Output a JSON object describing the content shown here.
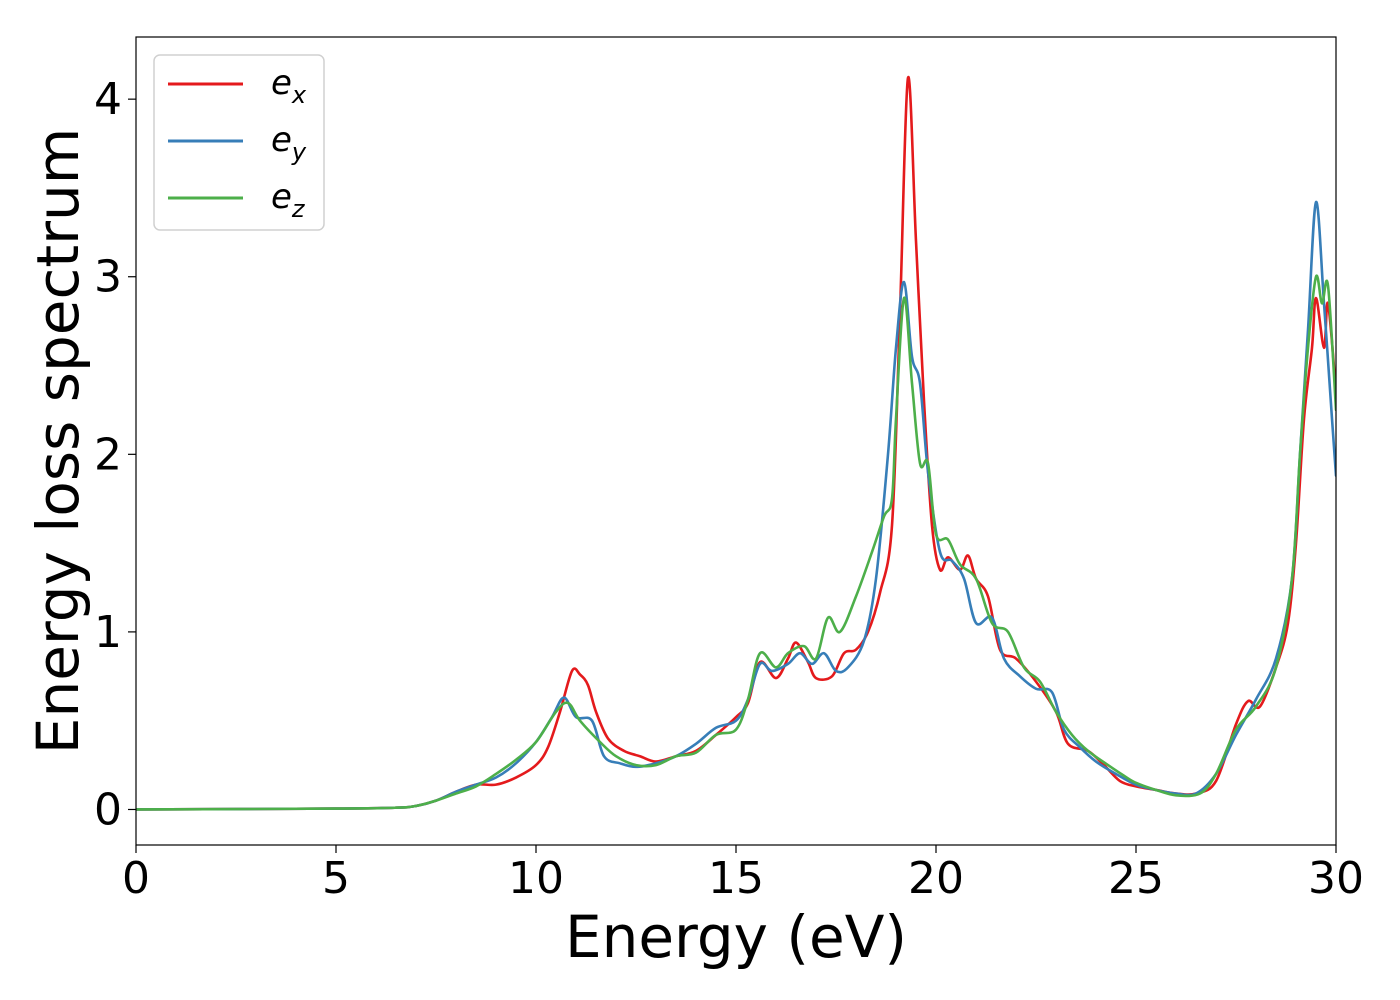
{
  "chart_data": {
    "type": "line",
    "title": "",
    "xlabel": "Energy (eV)",
    "ylabel": "Energy loss spectrum",
    "xlim": [
      0,
      30
    ],
    "ylim": [
      -0.2,
      4.35
    ],
    "xticks": [
      0,
      5,
      10,
      15,
      20,
      25,
      30
    ],
    "yticks": [
      0,
      1,
      2,
      3,
      4
    ],
    "xtick_labels": [
      "0",
      "5",
      "10",
      "15",
      "20",
      "25",
      "30"
    ],
    "ytick_labels": [
      "0",
      "1",
      "2",
      "3",
      "4"
    ],
    "grid": false,
    "legend_position": "top-left",
    "series": [
      {
        "name": "e_x",
        "label_base": "e",
        "label_sub": "x",
        "color": "#e41a1c",
        "points": [
          [
            0,
            0
          ],
          [
            5,
            0.005
          ],
          [
            6.5,
            0.01
          ],
          [
            7,
            0.02
          ],
          [
            7.5,
            0.05
          ],
          [
            8,
            0.1
          ],
          [
            8.5,
            0.14
          ],
          [
            9,
            0.14
          ],
          [
            9.5,
            0.18
          ],
          [
            10,
            0.25
          ],
          [
            10.3,
            0.35
          ],
          [
            10.6,
            0.55
          ],
          [
            10.9,
            0.78
          ],
          [
            11.1,
            0.76
          ],
          [
            11.3,
            0.7
          ],
          [
            11.5,
            0.55
          ],
          [
            11.8,
            0.4
          ],
          [
            12.2,
            0.33
          ],
          [
            12.6,
            0.3
          ],
          [
            13,
            0.27
          ],
          [
            13.5,
            0.3
          ],
          [
            14,
            0.33
          ],
          [
            14.5,
            0.42
          ],
          [
            15,
            0.52
          ],
          [
            15.3,
            0.6
          ],
          [
            15.6,
            0.83
          ],
          [
            16,
            0.74
          ],
          [
            16.3,
            0.85
          ],
          [
            16.5,
            0.94
          ],
          [
            16.8,
            0.83
          ],
          [
            17,
            0.74
          ],
          [
            17.4,
            0.75
          ],
          [
            17.7,
            0.88
          ],
          [
            18,
            0.9
          ],
          [
            18.3,
            1.0
          ],
          [
            18.6,
            1.22
          ],
          [
            18.9,
            1.6
          ],
          [
            19.1,
            2.8
          ],
          [
            19.3,
            4.12
          ],
          [
            19.5,
            3.2
          ],
          [
            19.7,
            2.3
          ],
          [
            19.9,
            1.6
          ],
          [
            20.1,
            1.35
          ],
          [
            20.3,
            1.42
          ],
          [
            20.6,
            1.35
          ],
          [
            20.8,
            1.43
          ],
          [
            21,
            1.3
          ],
          [
            21.3,
            1.2
          ],
          [
            21.6,
            0.9
          ],
          [
            22,
            0.85
          ],
          [
            22.5,
            0.72
          ],
          [
            23,
            0.55
          ],
          [
            23.3,
            0.37
          ],
          [
            23.8,
            0.33
          ],
          [
            24.2,
            0.25
          ],
          [
            24.6,
            0.16
          ],
          [
            25,
            0.13
          ],
          [
            25.5,
            0.11
          ],
          [
            26,
            0.09
          ],
          [
            26.5,
            0.09
          ],
          [
            27,
            0.16
          ],
          [
            27.5,
            0.48
          ],
          [
            27.8,
            0.61
          ],
          [
            28.1,
            0.58
          ],
          [
            28.5,
            0.8
          ],
          [
            28.8,
            1.05
          ],
          [
            29,
            1.5
          ],
          [
            29.2,
            2.2
          ],
          [
            29.4,
            2.6
          ],
          [
            29.5,
            2.88
          ],
          [
            29.7,
            2.6
          ],
          [
            29.8,
            2.85
          ],
          [
            30,
            2.35
          ]
        ]
      },
      {
        "name": "e_y",
        "label_base": "e",
        "label_sub": "y",
        "color": "#377eb8",
        "points": [
          [
            0,
            0
          ],
          [
            5,
            0.005
          ],
          [
            6.5,
            0.01
          ],
          [
            7,
            0.02
          ],
          [
            7.5,
            0.05
          ],
          [
            8,
            0.1
          ],
          [
            8.5,
            0.14
          ],
          [
            9,
            0.18
          ],
          [
            9.5,
            0.26
          ],
          [
            10,
            0.38
          ],
          [
            10.4,
            0.52
          ],
          [
            10.7,
            0.63
          ],
          [
            11,
            0.52
          ],
          [
            11.4,
            0.5
          ],
          [
            11.7,
            0.3
          ],
          [
            12.1,
            0.26
          ],
          [
            12.5,
            0.24
          ],
          [
            13,
            0.26
          ],
          [
            13.5,
            0.3
          ],
          [
            14,
            0.37
          ],
          [
            14.5,
            0.46
          ],
          [
            15,
            0.5
          ],
          [
            15.3,
            0.62
          ],
          [
            15.6,
            0.82
          ],
          [
            15.9,
            0.78
          ],
          [
            16.3,
            0.82
          ],
          [
            16.6,
            0.88
          ],
          [
            16.9,
            0.82
          ],
          [
            17.2,
            0.88
          ],
          [
            17.5,
            0.78
          ],
          [
            17.8,
            0.8
          ],
          [
            18.2,
            0.95
          ],
          [
            18.5,
            1.3
          ],
          [
            18.8,
            2.0
          ],
          [
            19.0,
            2.6
          ],
          [
            19.2,
            2.97
          ],
          [
            19.4,
            2.55
          ],
          [
            19.6,
            2.4
          ],
          [
            19.8,
            1.9
          ],
          [
            20.1,
            1.45
          ],
          [
            20.4,
            1.4
          ],
          [
            20.7,
            1.3
          ],
          [
            21,
            1.05
          ],
          [
            21.4,
            1.08
          ],
          [
            21.7,
            0.85
          ],
          [
            22.1,
            0.75
          ],
          [
            22.5,
            0.68
          ],
          [
            22.9,
            0.66
          ],
          [
            23.2,
            0.45
          ],
          [
            23.6,
            0.35
          ],
          [
            24,
            0.27
          ],
          [
            24.5,
            0.2
          ],
          [
            25,
            0.14
          ],
          [
            25.5,
            0.11
          ],
          [
            26,
            0.09
          ],
          [
            26.5,
            0.09
          ],
          [
            27,
            0.2
          ],
          [
            27.5,
            0.42
          ],
          [
            28,
            0.62
          ],
          [
            28.5,
            0.85
          ],
          [
            28.9,
            1.3
          ],
          [
            29.1,
            2.0
          ],
          [
            29.3,
            2.7
          ],
          [
            29.5,
            3.42
          ],
          [
            29.7,
            2.85
          ],
          [
            29.9,
            2.2
          ],
          [
            30,
            1.88
          ]
        ]
      },
      {
        "name": "e_z",
        "label_base": "e",
        "label_sub": "z",
        "color": "#4daf4a",
        "points": [
          [
            0,
            0
          ],
          [
            5,
            0.005
          ],
          [
            6.5,
            0.01
          ],
          [
            7,
            0.02
          ],
          [
            7.5,
            0.05
          ],
          [
            8,
            0.09
          ],
          [
            8.5,
            0.13
          ],
          [
            9,
            0.2
          ],
          [
            9.5,
            0.28
          ],
          [
            10,
            0.38
          ],
          [
            10.5,
            0.55
          ],
          [
            10.8,
            0.6
          ],
          [
            11.1,
            0.5
          ],
          [
            11.6,
            0.38
          ],
          [
            12,
            0.3
          ],
          [
            12.5,
            0.25
          ],
          [
            13,
            0.25
          ],
          [
            13.5,
            0.3
          ],
          [
            14,
            0.32
          ],
          [
            14.5,
            0.42
          ],
          [
            15,
            0.45
          ],
          [
            15.3,
            0.62
          ],
          [
            15.6,
            0.88
          ],
          [
            16,
            0.8
          ],
          [
            16.3,
            0.88
          ],
          [
            16.7,
            0.92
          ],
          [
            17,
            0.85
          ],
          [
            17.3,
            1.08
          ],
          [
            17.6,
            1.0
          ],
          [
            18,
            1.2
          ],
          [
            18.4,
            1.45
          ],
          [
            18.7,
            1.65
          ],
          [
            18.9,
            1.75
          ],
          [
            19.0,
            2.2
          ],
          [
            19.2,
            2.88
          ],
          [
            19.4,
            2.4
          ],
          [
            19.6,
            1.95
          ],
          [
            19.8,
            1.95
          ],
          [
            20,
            1.55
          ],
          [
            20.3,
            1.52
          ],
          [
            20.6,
            1.38
          ],
          [
            21,
            1.3
          ],
          [
            21.4,
            1.05
          ],
          [
            21.8,
            1.0
          ],
          [
            22.2,
            0.8
          ],
          [
            22.6,
            0.72
          ],
          [
            23,
            0.55
          ],
          [
            23.4,
            0.42
          ],
          [
            23.8,
            0.33
          ],
          [
            24.3,
            0.25
          ],
          [
            24.7,
            0.19
          ],
          [
            25,
            0.15
          ],
          [
            25.5,
            0.11
          ],
          [
            26,
            0.08
          ],
          [
            26.6,
            0.09
          ],
          [
            27,
            0.2
          ],
          [
            27.5,
            0.45
          ],
          [
            28,
            0.58
          ],
          [
            28.5,
            0.8
          ],
          [
            28.9,
            1.3
          ],
          [
            29.1,
            2.0
          ],
          [
            29.3,
            2.6
          ],
          [
            29.5,
            3.0
          ],
          [
            29.65,
            2.85
          ],
          [
            29.8,
            2.95
          ],
          [
            30,
            2.25
          ]
        ]
      }
    ]
  }
}
